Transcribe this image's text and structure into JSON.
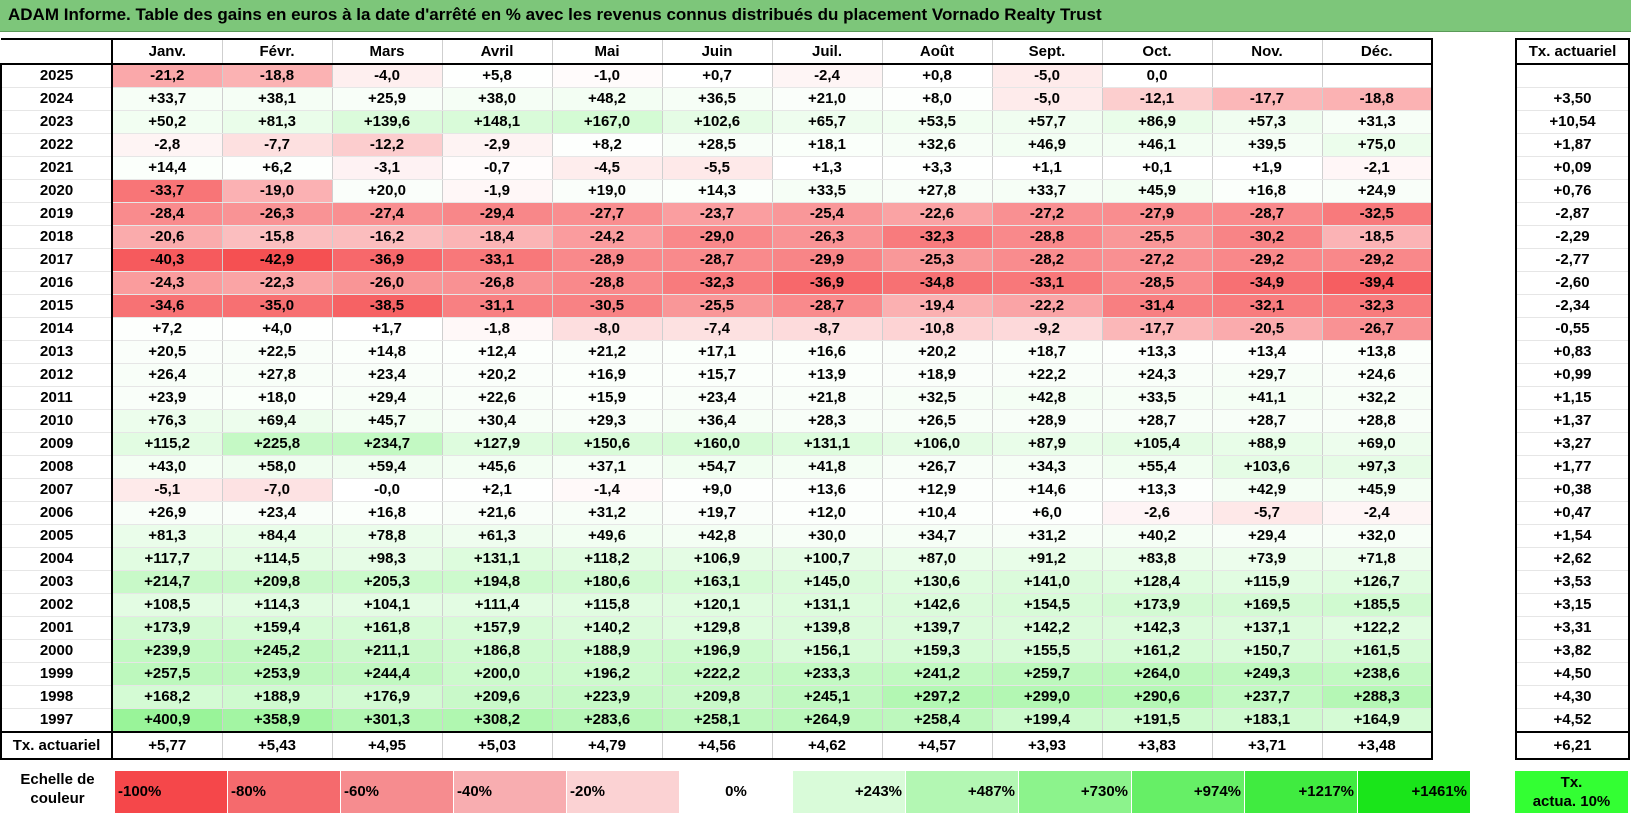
{
  "title": "ADAM Informe. Table des gains en euros à la date d'arrêté en % avec les revenus connus distribués du placement Vornado Realty Trust",
  "months": [
    "Janv.",
    "Févr.",
    "Mars",
    "Avril",
    "Mai",
    "Juin",
    "Juil.",
    "Août",
    "Sept.",
    "Oct.",
    "Nov.",
    "Déc."
  ],
  "act_header": "Tx. actuariel",
  "rows": [
    {
      "year": "2025",
      "values": [
        "-21,2",
        "-18,8",
        "-4,0",
        "+5,8",
        "-1,0",
        "+0,7",
        "-2,4",
        "+0,8",
        "-5,0",
        "0,0",
        "",
        ""
      ],
      "act": ""
    },
    {
      "year": "2024",
      "values": [
        "+33,7",
        "+38,1",
        "+25,9",
        "+38,0",
        "+48,2",
        "+36,5",
        "+21,0",
        "+8,0",
        "-5,0",
        "-12,1",
        "-17,7",
        "-18,8"
      ],
      "act": "+3,50"
    },
    {
      "year": "2023",
      "values": [
        "+50,2",
        "+81,3",
        "+139,6",
        "+148,1",
        "+167,0",
        "+102,6",
        "+65,7",
        "+53,5",
        "+57,7",
        "+86,9",
        "+57,3",
        "+31,3"
      ],
      "act": "+10,54"
    },
    {
      "year": "2022",
      "values": [
        "-2,8",
        "-7,7",
        "-12,2",
        "-2,9",
        "+8,2",
        "+28,5",
        "+18,1",
        "+32,6",
        "+46,9",
        "+46,1",
        "+39,5",
        "+75,0"
      ],
      "act": "+1,87"
    },
    {
      "year": "2021",
      "values": [
        "+14,4",
        "+6,2",
        "-3,1",
        "-0,7",
        "-4,5",
        "-5,5",
        "+1,3",
        "+3,3",
        "+1,1",
        "+0,1",
        "+1,9",
        "-2,1"
      ],
      "act": "+0,09"
    },
    {
      "year": "2020",
      "values": [
        "-33,7",
        "-19,0",
        "+20,0",
        "-1,9",
        "+19,0",
        "+14,3",
        "+33,5",
        "+27,8",
        "+33,7",
        "+45,9",
        "+16,8",
        "+24,9"
      ],
      "act": "+0,76"
    },
    {
      "year": "2019",
      "values": [
        "-28,4",
        "-26,3",
        "-27,4",
        "-29,4",
        "-27,7",
        "-23,7",
        "-25,4",
        "-22,6",
        "-27,2",
        "-27,9",
        "-28,7",
        "-32,5"
      ],
      "act": "-2,87"
    },
    {
      "year": "2018",
      "values": [
        "-20,6",
        "-15,8",
        "-16,2",
        "-18,4",
        "-24,2",
        "-29,0",
        "-26,3",
        "-32,3",
        "-28,8",
        "-25,5",
        "-30,2",
        "-18,5"
      ],
      "act": "-2,29"
    },
    {
      "year": "2017",
      "values": [
        "-40,3",
        "-42,9",
        "-36,9",
        "-33,1",
        "-28,9",
        "-28,7",
        "-29,9",
        "-25,3",
        "-28,2",
        "-27,2",
        "-29,2",
        "-29,2"
      ],
      "act": "-2,77"
    },
    {
      "year": "2016",
      "values": [
        "-24,3",
        "-22,3",
        "-26,0",
        "-26,8",
        "-28,8",
        "-32,3",
        "-36,9",
        "-34,8",
        "-33,1",
        "-28,5",
        "-34,9",
        "-39,4"
      ],
      "act": "-2,60"
    },
    {
      "year": "2015",
      "values": [
        "-34,6",
        "-35,0",
        "-38,5",
        "-31,1",
        "-30,5",
        "-25,5",
        "-28,7",
        "-19,4",
        "-22,2",
        "-31,4",
        "-32,1",
        "-32,3"
      ],
      "act": "-2,34"
    },
    {
      "year": "2014",
      "values": [
        "+7,2",
        "+4,0",
        "+1,7",
        "-1,8",
        "-8,0",
        "-7,4",
        "-8,7",
        "-10,8",
        "-9,2",
        "-17,7",
        "-20,5",
        "-26,7"
      ],
      "act": "-0,55"
    },
    {
      "year": "2013",
      "values": [
        "+20,5",
        "+22,5",
        "+14,8",
        "+12,4",
        "+21,2",
        "+17,1",
        "+16,6",
        "+20,2",
        "+18,7",
        "+13,3",
        "+13,4",
        "+13,8"
      ],
      "act": "+0,83"
    },
    {
      "year": "2012",
      "values": [
        "+26,4",
        "+27,8",
        "+23,4",
        "+20,2",
        "+16,9",
        "+15,7",
        "+13,9",
        "+18,9",
        "+22,2",
        "+24,3",
        "+29,7",
        "+24,6"
      ],
      "act": "+0,99"
    },
    {
      "year": "2011",
      "values": [
        "+23,9",
        "+18,0",
        "+29,4",
        "+22,6",
        "+15,9",
        "+23,4",
        "+21,8",
        "+32,5",
        "+42,8",
        "+33,5",
        "+41,1",
        "+32,2"
      ],
      "act": "+1,15"
    },
    {
      "year": "2010",
      "values": [
        "+76,3",
        "+69,4",
        "+45,7",
        "+30,4",
        "+29,3",
        "+36,4",
        "+28,3",
        "+26,5",
        "+28,9",
        "+28,7",
        "+28,7",
        "+28,8"
      ],
      "act": "+1,37"
    },
    {
      "year": "2009",
      "values": [
        "+115,2",
        "+225,8",
        "+234,7",
        "+127,9",
        "+150,6",
        "+160,0",
        "+131,1",
        "+106,0",
        "+87,9",
        "+105,4",
        "+88,9",
        "+69,0"
      ],
      "act": "+3,27"
    },
    {
      "year": "2008",
      "values": [
        "+43,0",
        "+58,0",
        "+59,4",
        "+45,6",
        "+37,1",
        "+54,7",
        "+41,8",
        "+26,7",
        "+34,3",
        "+55,4",
        "+103,6",
        "+97,3"
      ],
      "act": "+1,77"
    },
    {
      "year": "2007",
      "values": [
        "-5,1",
        "-7,0",
        "-0,0",
        "+2,1",
        "-1,4",
        "+9,0",
        "+13,6",
        "+12,9",
        "+14,6",
        "+13,3",
        "+42,9",
        "+45,9"
      ],
      "act": "+0,38"
    },
    {
      "year": "2006",
      "values": [
        "+26,9",
        "+23,4",
        "+16,8",
        "+21,6",
        "+31,2",
        "+19,7",
        "+12,0",
        "+10,4",
        "+6,0",
        "-2,6",
        "-5,7",
        "-2,4"
      ],
      "act": "+0,47"
    },
    {
      "year": "2005",
      "values": [
        "+81,3",
        "+84,4",
        "+78,8",
        "+61,3",
        "+49,6",
        "+42,8",
        "+30,0",
        "+34,7",
        "+31,2",
        "+40,2",
        "+29,4",
        "+32,0"
      ],
      "act": "+1,54"
    },
    {
      "year": "2004",
      "values": [
        "+117,7",
        "+114,5",
        "+98,3",
        "+131,1",
        "+118,2",
        "+106,9",
        "+100,7",
        "+87,0",
        "+91,2",
        "+83,8",
        "+73,9",
        "+71,8"
      ],
      "act": "+2,62"
    },
    {
      "year": "2003",
      "values": [
        "+214,7",
        "+209,8",
        "+205,3",
        "+194,8",
        "+180,6",
        "+163,1",
        "+145,0",
        "+130,6",
        "+141,0",
        "+128,4",
        "+115,9",
        "+126,7"
      ],
      "act": "+3,53"
    },
    {
      "year": "2002",
      "values": [
        "+108,5",
        "+114,3",
        "+104,1",
        "+111,4",
        "+115,8",
        "+120,1",
        "+131,1",
        "+142,6",
        "+154,5",
        "+173,9",
        "+169,5",
        "+185,5"
      ],
      "act": "+3,15"
    },
    {
      "year": "2001",
      "values": [
        "+173,9",
        "+159,4",
        "+161,8",
        "+157,9",
        "+140,2",
        "+129,8",
        "+139,8",
        "+139,7",
        "+142,2",
        "+142,3",
        "+137,1",
        "+122,2"
      ],
      "act": "+3,31"
    },
    {
      "year": "2000",
      "values": [
        "+239,9",
        "+245,2",
        "+211,1",
        "+186,8",
        "+188,9",
        "+196,9",
        "+156,1",
        "+159,3",
        "+155,5",
        "+161,2",
        "+150,7",
        "+161,5"
      ],
      "act": "+3,82"
    },
    {
      "year": "1999",
      "values": [
        "+257,5",
        "+253,9",
        "+244,4",
        "+200,0",
        "+196,2",
        "+222,2",
        "+233,3",
        "+241,2",
        "+259,7",
        "+264,0",
        "+249,3",
        "+238,6"
      ],
      "act": "+4,50"
    },
    {
      "year": "1998",
      "values": [
        "+168,2",
        "+188,9",
        "+176,9",
        "+209,6",
        "+223,9",
        "+209,8",
        "+245,1",
        "+297,2",
        "+299,0",
        "+290,6",
        "+237,7",
        "+288,3"
      ],
      "act": "+4,30"
    },
    {
      "year": "1997",
      "values": [
        "+400,9",
        "+358,9",
        "+301,3",
        "+308,2",
        "+283,6",
        "+258,1",
        "+264,9",
        "+258,4",
        "+199,4",
        "+191,5",
        "+183,1",
        "+164,9"
      ],
      "act": "+4,52"
    }
  ],
  "act_row": {
    "label": "Tx. actuariel",
    "values": [
      "+5,77",
      "+5,43",
      "+4,95",
      "+5,03",
      "+4,79",
      "+4,56",
      "+4,62",
      "+4,57",
      "+3,93",
      "+3,83",
      "+3,71",
      "+3,48"
    ],
    "act": "+6,21"
  },
  "scale": {
    "label": "Echelle de couleur",
    "cells": [
      {
        "text": "-100%",
        "color": "#f5474a",
        "align": "left"
      },
      {
        "text": "-80%",
        "color": "#f56a6d",
        "align": "left"
      },
      {
        "text": "-60%",
        "color": "#f68c8f",
        "align": "left"
      },
      {
        "text": "-40%",
        "color": "#f8adb0",
        "align": "left"
      },
      {
        "text": "-20%",
        "color": "#fbd2d3",
        "align": "left"
      },
      {
        "text": "0%",
        "color": "#ffffff",
        "align": "center"
      },
      {
        "text": "+243%",
        "color": "#d9fbd9",
        "align": "right"
      },
      {
        "text": "+487%",
        "color": "#b3f7b3",
        "align": "right"
      },
      {
        "text": "+730%",
        "color": "#8cf38c",
        "align": "right"
      },
      {
        "text": "+974%",
        "color": "#66ef66",
        "align": "right"
      },
      {
        "text": "+1217%",
        "color": "#40eb40",
        "align": "right"
      },
      {
        "text": "+1461%",
        "color": "#1ae51a",
        "align": "right"
      }
    ],
    "act_label_1": "Tx.",
    "act_label_2": "actua. 10%",
    "act_color": "#33ff33"
  }
}
